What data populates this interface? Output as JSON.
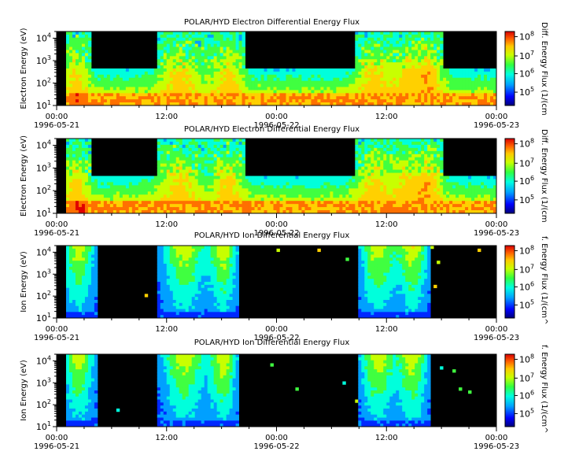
{
  "chart_data": [
    {
      "type": "heatmap",
      "title": "POLAR/HYD  Electron Differential Energy Flux",
      "ylabel": "Electron Energy (eV)",
      "colorbar_label": "Diff. Energy Flux (1/(cm",
      "y_scale": "log",
      "ylim": [
        10,
        20000
      ],
      "y_ticks": [
        "10^1",
        "10^2",
        "10^3",
        "10^4"
      ],
      "x_ticks": [
        "00:00",
        "12:00",
        "00:00",
        "12:00",
        "00:00"
      ],
      "x_dates": [
        "1996-05-21",
        "1996-05-22",
        "1996-05-23"
      ],
      "colorbar_ticks": [
        "10^5",
        "10^6",
        "10^7",
        "10^8"
      ]
    },
    {
      "type": "heatmap",
      "title": "POLAR/HYD  Electron Differential Energy Flux",
      "ylabel": "Electron Energy (eV)",
      "colorbar_label": "Diff. Energy Flux (1/(cm",
      "y_scale": "log",
      "ylim": [
        10,
        20000
      ],
      "y_ticks": [
        "10^1",
        "10^2",
        "10^3",
        "10^4"
      ],
      "x_ticks": [
        "00:00",
        "12:00",
        "00:00",
        "12:00",
        "00:00"
      ],
      "x_dates": [
        "1996-05-21",
        "1996-05-22",
        "1996-05-23"
      ],
      "colorbar_ticks": [
        "10^5",
        "10^6",
        "10^7",
        "10^8"
      ]
    },
    {
      "type": "heatmap",
      "title": "POLAR/HYD  Ion Differential Energy Flux",
      "ylabel": "Ion Energy (eV)",
      "colorbar_label": "f. Energy Flux (1/(cm^",
      "y_scale": "log",
      "ylim": [
        10,
        20000
      ],
      "y_ticks": [
        "10^1",
        "10^2",
        "10^3",
        "10^4"
      ],
      "x_ticks": [
        "00:00",
        "12:00",
        "00:00",
        "12:00",
        "00:00"
      ],
      "x_dates": [
        "1996-05-21",
        "1996-05-22",
        "1996-05-23"
      ],
      "colorbar_ticks": [
        "10^5",
        "10^6",
        "10^7",
        "10^8"
      ]
    },
    {
      "type": "heatmap",
      "title": "POLAR/HYD  Ion Differential Energy Flux",
      "ylabel": "Ion Energy (eV)",
      "colorbar_label": "f. Energy Flux (1/(cm^",
      "y_scale": "log",
      "ylim": [
        10,
        20000
      ],
      "y_ticks": [
        "10^1",
        "10^2",
        "10^3",
        "10^4"
      ],
      "x_ticks": [
        "00:00",
        "12:00",
        "00:00",
        "12:00",
        "00:00"
      ],
      "x_dates": [
        "1996-05-21",
        "1996-05-22",
        "1996-05-23"
      ],
      "colorbar_ticks": [
        "10^5",
        "10^6",
        "10^7",
        "10^8"
      ]
    }
  ],
  "colors": {
    "background": "#000000",
    "colormap": [
      "#0000b4",
      "#0028ff",
      "#00a0ff",
      "#00ffdc",
      "#40ff40",
      "#c8ff00",
      "#ffd000",
      "#ff7000",
      "#e00000"
    ]
  }
}
